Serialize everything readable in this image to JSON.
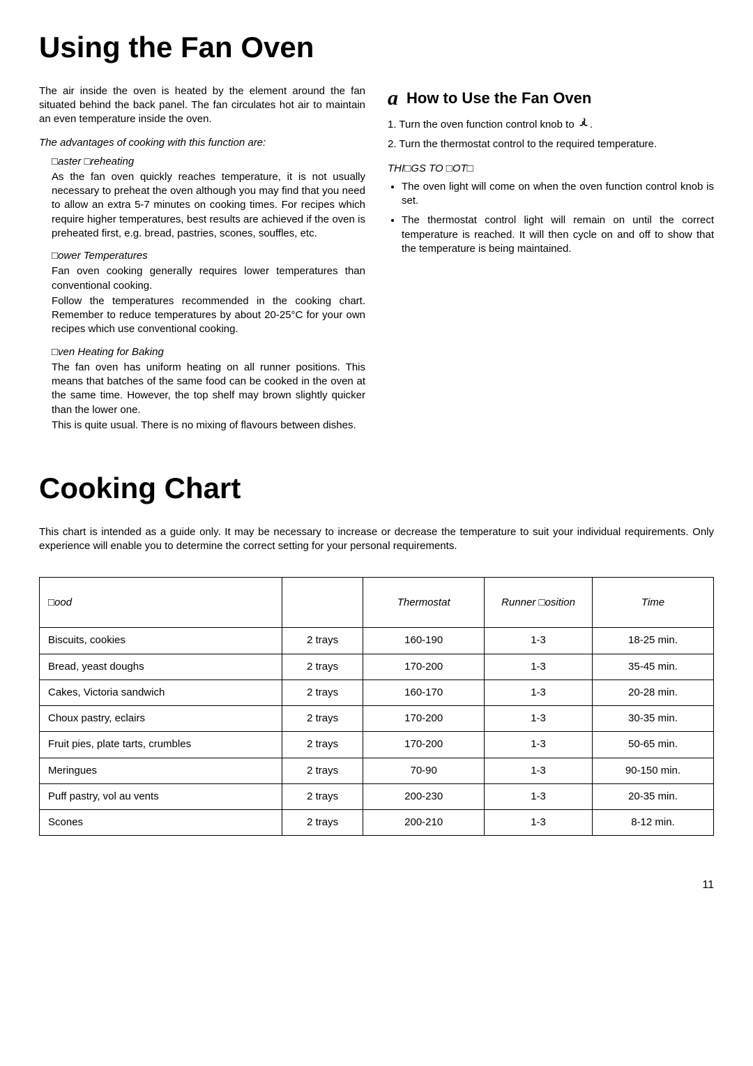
{
  "title1": "Using the Fan Oven",
  "intro_para": "The air inside the oven is heated by the element around the fan situated behind the back panel. The fan circulates hot air to maintain an even temperature inside the oven.",
  "advantages_line": "The advantages of cooking with this function are:",
  "adv1_title": "□aster □reheating",
  "adv1_body": "As the fan oven quickly reaches temperature, it is not usually necessary to preheat the oven although you may find that you need to allow an extra 5-7 minutes on cooking times. For recipes which require higher temperatures, best results are achieved if the oven is preheated first, e.g. bread, pastries, scones, souffles, etc.",
  "adv2_title": "□ower Temperatures",
  "adv2_body1": "Fan oven cooking generally requires lower temperatures than conventional cooking.",
  "adv2_body2": "Follow the temperatures recommended in the cooking chart. Remember to reduce temperatures by about 20-25°C for your own recipes which use conventional cooking.",
  "adv3_title": "□ven Heating for Baking",
  "adv3_body1": "The fan oven has uniform heating on all runner positions. This means that batches of the same food can be cooked in the oven at the same time. However, the top shelf may brown slightly quicker than the lower one.",
  "adv3_body2": "This is quite usual. There is no mixing of flavours between dishes.",
  "howto_title": "How to Use the Fan Oven",
  "step1_prefix": "1. Turn the oven function control knob to ",
  "step1_suffix": ".",
  "step2": "2. Turn the thermostat control to the required temperature.",
  "things_title": "THI□GS TO □OT□",
  "note1": "The oven light will come on when the oven function control knob is set.",
  "note2": "The thermostat control light will remain on until the correct temperature is reached. It will then cycle on and off to show that the temperature is being maintained.",
  "title2": "Cooking Chart",
  "chart_intro": "This chart is intended as a guide only. It may be necessary to increase or decrease the temperature to suit your individual requirements. Only experience will enable you to determine the correct setting for your personal requirements.",
  "table": {
    "headers": [
      "□ood",
      "",
      "Thermostat",
      "Runner □osition",
      "Time"
    ],
    "rows": [
      [
        "Biscuits, cookies",
        "2 trays",
        "160-190",
        "1-3",
        "18-25 min."
      ],
      [
        "Bread, yeast doughs",
        "2 trays",
        "170-200",
        "1-3",
        "35-45 min."
      ],
      [
        "Cakes, Victoria sandwich",
        "2 trays",
        "160-170",
        "1-3",
        "20-28 min."
      ],
      [
        "Choux pastry, eclairs",
        "2 trays",
        "170-200",
        "1-3",
        "30-35 min."
      ],
      [
        "Fruit pies, plate tarts, crumbles",
        "2 trays",
        "170-200",
        "1-3",
        "50-65 min."
      ],
      [
        "Meringues",
        "2 trays",
        "70-90",
        "1-3",
        "90-150 min."
      ],
      [
        "Puff pastry, vol au vents",
        "2 trays",
        "200-230",
        "1-3",
        "20-35 min."
      ],
      [
        "Scones",
        "2 trays",
        "200-210",
        "1-3",
        "8-12 min."
      ]
    ]
  },
  "page_number": "11"
}
